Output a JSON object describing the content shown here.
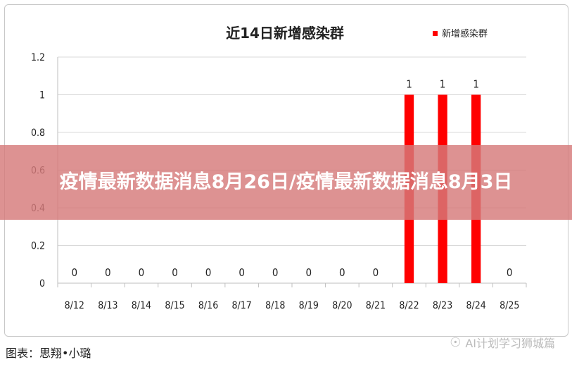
{
  "banner": {
    "title": "疫情最新数据消息8月26日/疫情最新数据消息8月3日"
  },
  "caption": {
    "text": "图表：思翔•小璐"
  },
  "watermark": {
    "icon": "wechat-icon",
    "text": "AI计划学习狮城篇"
  },
  "chart_data": {
    "type": "bar",
    "title": "近14日新增感染群",
    "xlabel": "",
    "ylabel": "",
    "ylim": [
      0,
      1.2
    ],
    "yticks": [
      "0",
      "0.2",
      "0.4",
      "0.6",
      "0.8",
      "1",
      "1.2"
    ],
    "categories": [
      "8/12",
      "8/13",
      "8/14",
      "8/15",
      "8/16",
      "8/17",
      "8/18",
      "8/19",
      "8/20",
      "8/21",
      "8/22",
      "8/23",
      "8/24",
      "8/25"
    ],
    "series": [
      {
        "name": "新增感染群",
        "color": "#ff0000",
        "values": [
          0,
          0,
          0,
          0,
          0,
          0,
          0,
          0,
          0,
          0,
          1,
          1,
          1,
          0
        ],
        "labels": [
          "0",
          "0",
          "0",
          "0",
          "0",
          "0",
          "0",
          "0",
          "0",
          "0",
          "1",
          "1",
          "1",
          "0"
        ]
      }
    ],
    "grid": true,
    "legend": "top-right"
  }
}
